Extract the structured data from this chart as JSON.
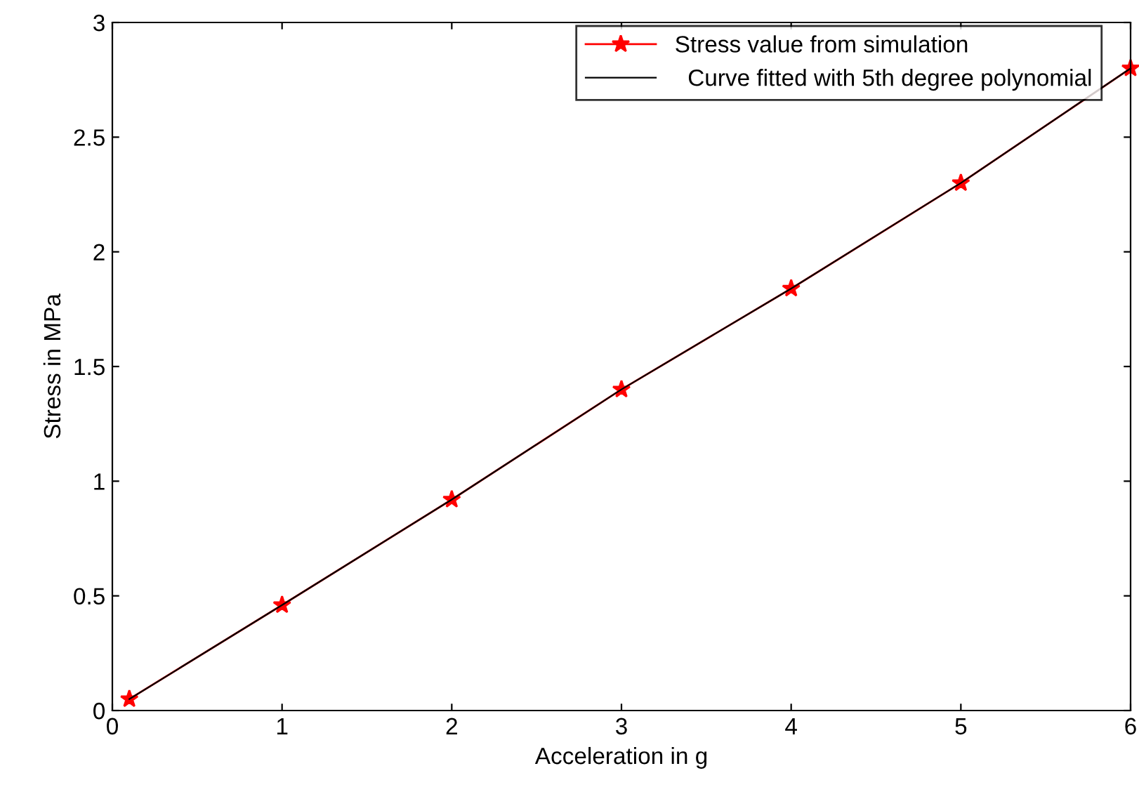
{
  "chart_data": {
    "type": "line",
    "xlabel": "Acceleration in g",
    "ylabel": "Stress in MPa",
    "xlim": [
      0,
      6
    ],
    "xticks": [
      0,
      1,
      2,
      3,
      4,
      5,
      6
    ],
    "ylim": [
      0,
      3
    ],
    "yticks": [
      0,
      0.5,
      1,
      1.5,
      2,
      2.5,
      3
    ],
    "grid": false,
    "legend": "top right",
    "series": [
      {
        "name": "Stress value from simulation",
        "color": "#ff0000",
        "marker": "star",
        "x": [
          0.1,
          1,
          2,
          3,
          4,
          5,
          6
        ],
        "values": [
          0.05,
          0.46,
          0.92,
          1.4,
          1.84,
          2.3,
          2.8
        ]
      },
      {
        "name": "  Curve fitted with 5th degree polynomial",
        "color": "#000000",
        "marker": "none",
        "x": [
          0.1,
          1,
          2,
          3,
          4,
          5,
          6
        ],
        "values": [
          0.05,
          0.46,
          0.92,
          1.4,
          1.84,
          2.3,
          2.8
        ]
      }
    ]
  }
}
